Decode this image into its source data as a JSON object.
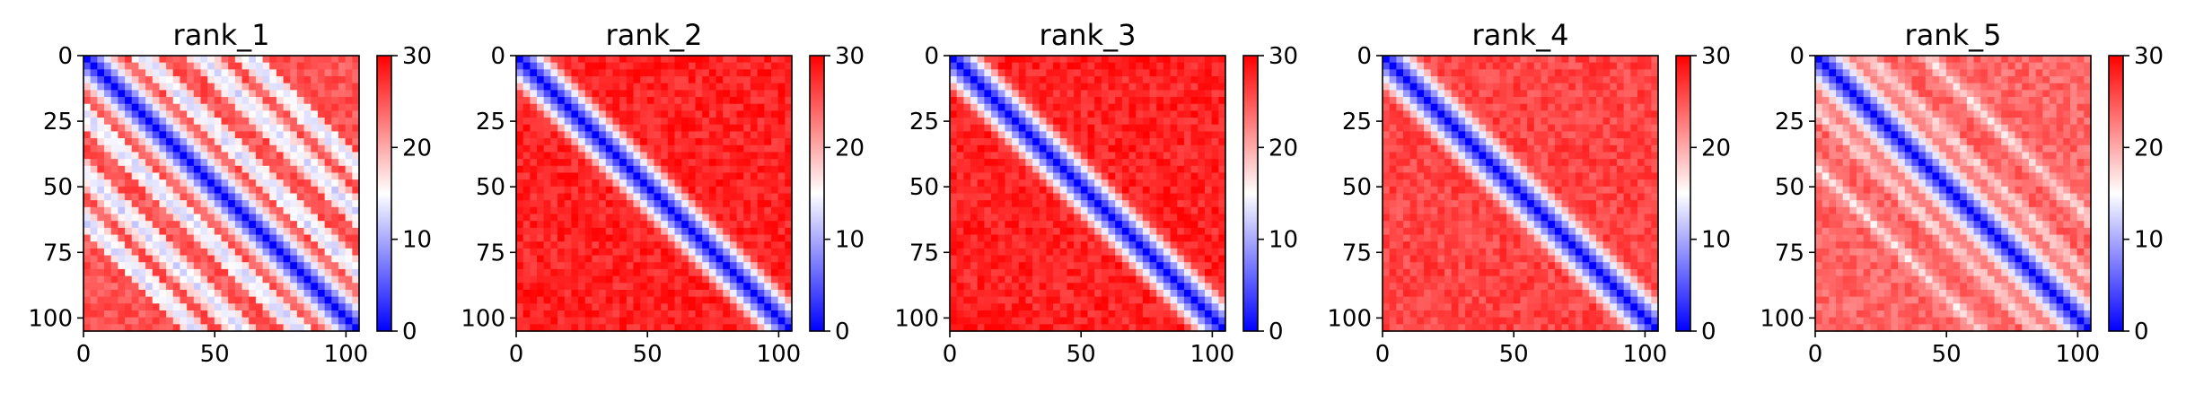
{
  "chart_data": [
    {
      "type": "heatmap",
      "title": "rank_1",
      "x_ticks": [
        0,
        50,
        100
      ],
      "y_ticks": [
        0,
        25,
        50,
        75,
        100
      ],
      "xlim": [
        0,
        105
      ],
      "ylim": [
        105,
        0
      ],
      "colorbar": {
        "range": [
          0,
          30
        ],
        "ticks": [
          0,
          10,
          20,
          30
        ],
        "colormap": "bwr",
        "colors": [
          "#0000ff",
          "#ffffff",
          "#ff0000"
        ]
      },
      "pattern": {
        "diagonal_band_width": 7,
        "off_diagonal_bands": [
          22,
          44,
          62
        ],
        "band_value": 12,
        "background_value": 25
      }
    },
    {
      "type": "heatmap",
      "title": "rank_2",
      "x_ticks": [
        0,
        50,
        100
      ],
      "y_ticks": [
        0,
        25,
        50,
        75,
        100
      ],
      "xlim": [
        0,
        105
      ],
      "ylim": [
        105,
        0
      ],
      "colorbar": {
        "range": [
          0,
          30
        ],
        "ticks": [
          0,
          10,
          20,
          30
        ],
        "colormap": "bwr",
        "colors": [
          "#0000ff",
          "#ffffff",
          "#ff0000"
        ]
      },
      "pattern": {
        "diagonal_band_width": 7,
        "off_diagonal_bands": [],
        "band_value": 20,
        "background_value": 28
      }
    },
    {
      "type": "heatmap",
      "title": "rank_3",
      "x_ticks": [
        0,
        50,
        100
      ],
      "y_ticks": [
        0,
        25,
        50,
        75,
        100
      ],
      "xlim": [
        0,
        105
      ],
      "ylim": [
        105,
        0
      ],
      "colorbar": {
        "range": [
          0,
          30
        ],
        "ticks": [
          0,
          10,
          20,
          30
        ],
        "colormap": "bwr",
        "colors": [
          "#0000ff",
          "#ffffff",
          "#ff0000"
        ]
      },
      "pattern": {
        "diagonal_band_width": 7,
        "off_diagonal_bands": [],
        "band_value": 20,
        "background_value": 28
      }
    },
    {
      "type": "heatmap",
      "title": "rank_4",
      "x_ticks": [
        0,
        50,
        100
      ],
      "y_ticks": [
        0,
        25,
        50,
        75,
        100
      ],
      "xlim": [
        0,
        105
      ],
      "ylim": [
        105,
        0
      ],
      "colorbar": {
        "range": [
          0,
          30
        ],
        "ticks": [
          0,
          10,
          20,
          30
        ],
        "colormap": "bwr",
        "colors": [
          "#0000ff",
          "#ffffff",
          "#ff0000"
        ]
      },
      "pattern": {
        "diagonal_band_width": 7,
        "off_diagonal_bands": [],
        "band_value": 20,
        "background_value": 26
      }
    },
    {
      "type": "heatmap",
      "title": "rank_5",
      "x_ticks": [
        0,
        50,
        100
      ],
      "y_ticks": [
        0,
        25,
        50,
        75,
        100
      ],
      "xlim": [
        0,
        105
      ],
      "ylim": [
        105,
        0
      ],
      "colorbar": {
        "range": [
          0,
          30
        ],
        "ticks": [
          0,
          10,
          20,
          30
        ],
        "colormap": "bwr",
        "colors": [
          "#0000ff",
          "#ffffff",
          "#ff0000"
        ]
      },
      "pattern": {
        "diagonal_band_width": 7,
        "off_diagonal_bands": [
          20,
          42
        ],
        "band_value": 17,
        "background_value": 24
      }
    }
  ]
}
